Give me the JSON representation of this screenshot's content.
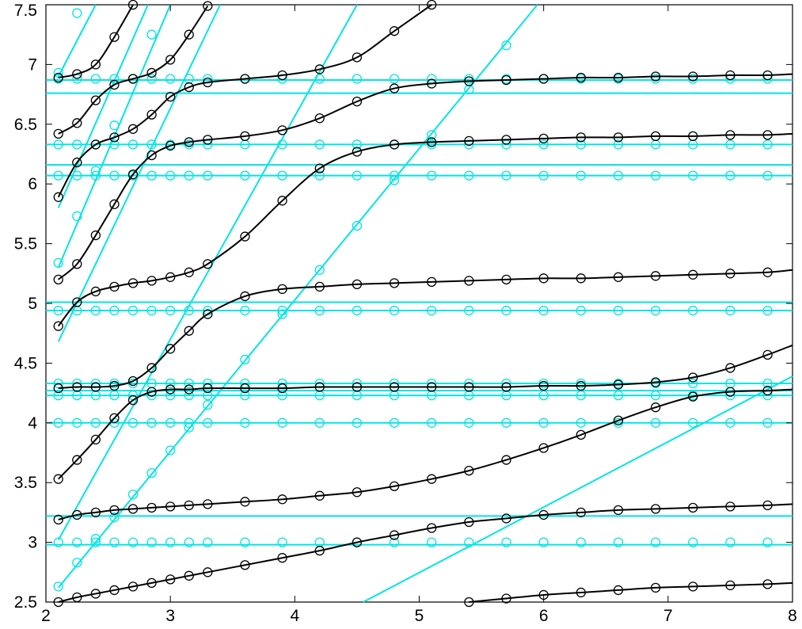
{
  "chart_data": {
    "type": "line",
    "title": "",
    "xlabel": "",
    "ylabel": "",
    "xlim": [
      2,
      8
    ],
    "ylim": [
      2.5,
      7.5
    ],
    "grid": false,
    "legend": "none",
    "x_ticks": [
      "2",
      "3",
      "4",
      "5",
      "6",
      "7",
      "8"
    ],
    "y_ticks": [
      "2.5",
      "3",
      "3.5",
      "4",
      "4.5",
      "5",
      "5.5",
      "6",
      "6.5",
      "7",
      "7.5"
    ],
    "colors": {
      "curves": "#000000",
      "guides": "#00e5e5",
      "axes": "#000000"
    },
    "marker_x": [
      2.1,
      2.25,
      2.4,
      2.55,
      2.7,
      2.85,
      3.0,
      3.15,
      3.3,
      3.6,
      3.9,
      4.2,
      4.5,
      4.8,
      5.1,
      5.4,
      5.7,
      6.0,
      6.3,
      6.6,
      6.9,
      7.2,
      7.5,
      7.8
    ],
    "black_series": [
      {
        "x": [
          2.1,
          2.25,
          2.4,
          2.55,
          2.7,
          2.85,
          3.0,
          3.15,
          3.3,
          3.6,
          3.9,
          4.2,
          4.5,
          4.8,
          5.1,
          5.4,
          5.7,
          6.0,
          6.3,
          6.6,
          6.9,
          7.2,
          7.5,
          7.8,
          8.0
        ],
        "y": [
          2.5,
          2.54,
          2.57,
          2.6,
          2.63,
          2.66,
          2.69,
          2.72,
          2.75,
          2.81,
          2.87,
          2.93,
          3.0,
          3.06,
          3.12,
          3.17,
          3.2,
          3.23,
          3.25,
          3.27,
          3.28,
          3.29,
          3.3,
          3.31,
          3.32
        ]
      },
      {
        "x": [
          2.1,
          2.25,
          2.4,
          2.55,
          2.7,
          2.85,
          3.0,
          3.15,
          3.3,
          3.6,
          3.9,
          4.2,
          4.5,
          4.8,
          5.1,
          5.4,
          5.7,
          6.0,
          6.3,
          6.6,
          6.9,
          7.2,
          7.5,
          7.8,
          8.0
        ],
        "y": [
          3.19,
          3.23,
          3.25,
          3.27,
          3.28,
          3.29,
          3.3,
          3.31,
          3.32,
          3.34,
          3.36,
          3.39,
          3.42,
          3.47,
          3.53,
          3.6,
          3.69,
          3.79,
          3.9,
          4.02,
          4.13,
          4.22,
          4.26,
          4.27,
          4.28
        ]
      },
      {
        "x": [
          2.1,
          2.25,
          2.4,
          2.55,
          2.7,
          2.85,
          3.0,
          3.15,
          3.3,
          3.6,
          3.9,
          4.2,
          4.5,
          4.8,
          5.1,
          5.4,
          5.7,
          6.0,
          6.3,
          6.6,
          6.9,
          7.2,
          7.5,
          7.8,
          8.0
        ],
        "y": [
          3.53,
          3.69,
          3.86,
          4.04,
          4.19,
          4.26,
          4.28,
          4.28,
          4.29,
          4.29,
          4.29,
          4.3,
          4.3,
          4.3,
          4.3,
          4.3,
          4.3,
          4.31,
          4.31,
          4.32,
          4.34,
          4.38,
          4.46,
          4.57,
          4.65
        ]
      },
      {
        "x": [
          2.1,
          2.25,
          2.4,
          2.55,
          2.7,
          2.85,
          3.0,
          3.15,
          3.3,
          3.6,
          3.9,
          4.2,
          4.5,
          4.8,
          5.1,
          5.4,
          5.7,
          6.0,
          6.3,
          6.6,
          6.9,
          7.2,
          7.5,
          7.8,
          8.0
        ],
        "y": [
          4.29,
          4.3,
          4.3,
          4.31,
          4.35,
          4.46,
          4.62,
          4.77,
          4.91,
          5.06,
          5.12,
          5.14,
          5.16,
          5.17,
          5.18,
          5.19,
          5.2,
          5.21,
          5.21,
          5.22,
          5.23,
          5.24,
          5.25,
          5.26,
          5.28
        ]
      },
      {
        "x": [
          2.1,
          2.25,
          2.4,
          2.55,
          2.7,
          2.85,
          3.0,
          3.15,
          3.3,
          3.6,
          3.9,
          4.2,
          4.5,
          4.8,
          5.1,
          5.4,
          5.7,
          6.0,
          6.3,
          6.6,
          6.9,
          7.2,
          7.5,
          7.8,
          8.0
        ],
        "y": [
          4.81,
          5.01,
          5.1,
          5.14,
          5.17,
          5.19,
          5.22,
          5.26,
          5.33,
          5.56,
          5.86,
          6.13,
          6.27,
          6.33,
          6.35,
          6.36,
          6.37,
          6.38,
          6.39,
          6.39,
          6.4,
          6.4,
          6.41,
          6.41,
          6.42
        ]
      },
      {
        "x": [
          2.1,
          2.25,
          2.4,
          2.55,
          2.7,
          2.85,
          3.0,
          3.15,
          3.3,
          3.6,
          3.9,
          4.2,
          4.5,
          4.8,
          5.1,
          5.4,
          5.7,
          6.0,
          6.3,
          6.6,
          6.9,
          7.2,
          7.5,
          7.8,
          8.0
        ],
        "y": [
          5.2,
          5.33,
          5.57,
          5.83,
          6.08,
          6.24,
          6.32,
          6.35,
          6.37,
          6.4,
          6.45,
          6.55,
          6.69,
          6.8,
          6.84,
          6.86,
          6.87,
          6.88,
          6.89,
          6.89,
          6.9,
          6.9,
          6.91,
          6.91,
          6.92
        ]
      },
      {
        "x": [
          2.1,
          2.25,
          2.4,
          2.55,
          2.7,
          2.85,
          3.0,
          3.15,
          3.3,
          3.6,
          3.9,
          4.2,
          4.5,
          4.8,
          5.1
        ],
        "y": [
          5.89,
          6.18,
          6.33,
          6.39,
          6.46,
          6.58,
          6.73,
          6.81,
          6.85,
          6.88,
          6.91,
          6.96,
          7.06,
          7.28,
          7.5
        ]
      },
      {
        "x": [
          2.1,
          2.25,
          2.4,
          2.55,
          2.7,
          2.85,
          3.0,
          3.15,
          3.3
        ],
        "y": [
          6.42,
          6.51,
          6.7,
          6.83,
          6.88,
          6.93,
          7.04,
          7.25,
          7.49
        ]
      },
      {
        "x": [
          2.1,
          2.25,
          2.4,
          2.55,
          2.7
        ],
        "y": [
          6.89,
          6.92,
          7.0,
          7.23,
          7.5
        ]
      },
      {
        "x": [
          5.4,
          5.7,
          6.0,
          6.3,
          6.6,
          6.9,
          7.2,
          7.5,
          7.8,
          8.0
        ],
        "y": [
          2.5,
          2.53,
          2.56,
          2.58,
          2.6,
          2.62,
          2.63,
          2.64,
          2.65,
          2.66
        ]
      }
    ],
    "cyan_horizontal_lines": [
      2.98,
      3.22,
      4.0,
      4.23,
      4.27,
      4.33,
      4.94,
      5.01,
      6.07,
      6.16,
      6.33,
      6.76,
      6.87
    ],
    "cyan_horizontal_markers": [
      3.0,
      4.0,
      4.23,
      4.33,
      4.94,
      6.07,
      6.33,
      6.88
    ],
    "cyan_diagonal_lines": [
      {
        "x": [
          2.1,
          2.4
        ],
        "y": [
          6.9,
          7.5
        ]
      },
      {
        "x": [
          2.1,
          2.82
        ],
        "y": [
          5.8,
          7.5
        ]
      },
      {
        "x": [
          2.1,
          3.0
        ],
        "y": [
          5.3,
          7.5
        ]
      },
      {
        "x": [
          2.1,
          3.4
        ],
        "y": [
          4.68,
          7.5
        ]
      },
      {
        "x": [
          2.1,
          4.5
        ],
        "y": [
          3.02,
          7.5
        ]
      },
      {
        "x": [
          2.1,
          5.95
        ],
        "y": [
          2.62,
          7.5
        ]
      },
      {
        "x": [
          4.55,
          8.0
        ],
        "y": [
          2.5,
          4.39
        ]
      }
    ],
    "cyan_diagonal_markers": [
      [
        2.1,
        6.93
      ],
      [
        2.25,
        7.43
      ],
      [
        2.1,
        5.34
      ],
      [
        2.25,
        5.73
      ],
      [
        2.4,
        6.11
      ],
      [
        2.55,
        6.49
      ],
      [
        2.7,
        6.88
      ],
      [
        2.85,
        7.25
      ],
      [
        2.1,
        2.63
      ],
      [
        2.25,
        2.83
      ],
      [
        2.4,
        3.03
      ],
      [
        2.55,
        3.21
      ],
      [
        2.7,
        3.4
      ],
      [
        2.85,
        3.58
      ],
      [
        3.0,
        3.77
      ],
      [
        3.15,
        3.96
      ],
      [
        3.3,
        4.15
      ],
      [
        3.6,
        4.53
      ],
      [
        3.9,
        4.91
      ],
      [
        4.2,
        5.28
      ],
      [
        4.5,
        5.65
      ],
      [
        4.8,
        6.03
      ],
      [
        5.1,
        6.41
      ],
      [
        5.4,
        6.79
      ],
      [
        5.7,
        7.16
      ]
    ]
  }
}
